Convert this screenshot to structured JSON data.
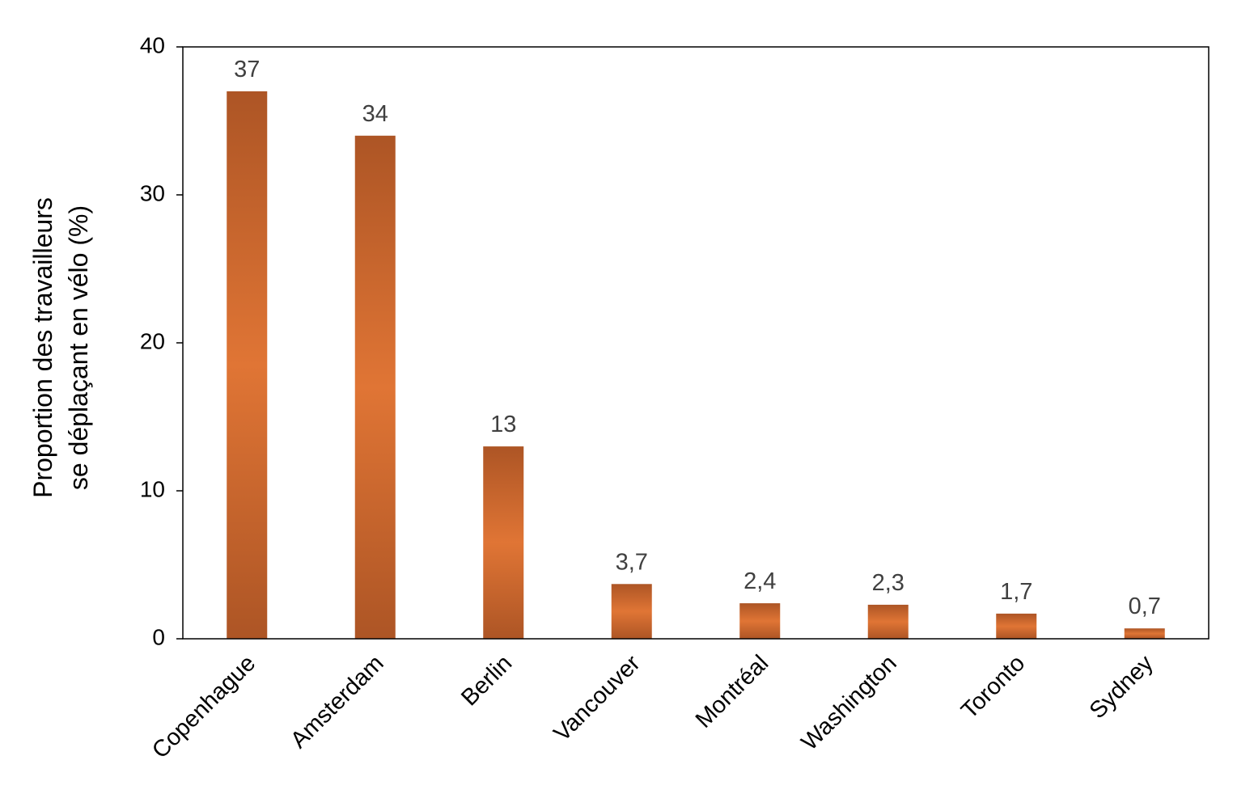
{
  "chart_data": {
    "type": "bar",
    "ylabel": [
      "Proportion des travailleurs",
      "se déplaçant en vélo (%)"
    ],
    "categories": [
      "Copenhague",
      "Amsterdam",
      "Berlin",
      "Vancouver",
      "Montréal",
      "Washington",
      "Toronto",
      "Sydney"
    ],
    "values": [
      37,
      34,
      13,
      3.7,
      2.4,
      2.3,
      1.7,
      0.7
    ],
    "value_labels": [
      "37",
      "34",
      "13",
      "3,7",
      "2,4",
      "2,3",
      "1,7",
      "0,7"
    ],
    "color": "#e07535",
    "ylim": [
      0,
      40
    ],
    "yticks": [
      0,
      10,
      20,
      30,
      40
    ]
  }
}
